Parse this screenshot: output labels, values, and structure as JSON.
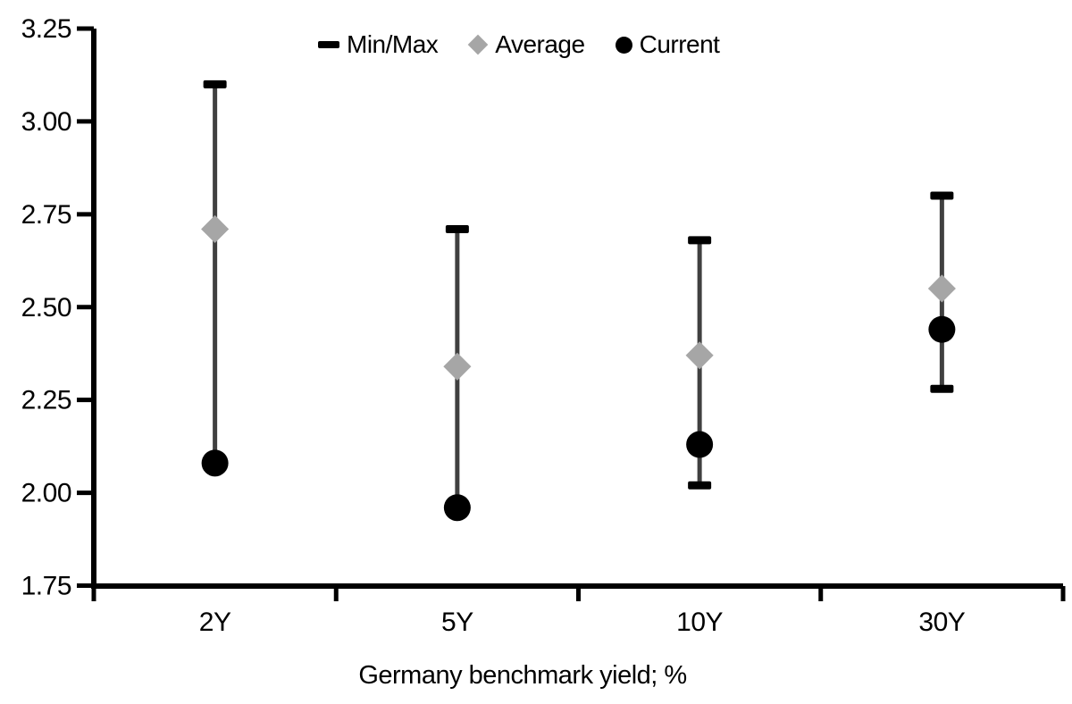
{
  "chart_data": {
    "type": "scatter",
    "title": "",
    "xlabel": "Germany benchmark yield; %",
    "ylabel": "",
    "ylim": [
      1.75,
      3.25
    ],
    "ytick_step": 0.25,
    "yticks": [
      {
        "value": 3.25,
        "label": "3.25"
      },
      {
        "value": 3.0,
        "label": "3.00"
      },
      {
        "value": 2.75,
        "label": "2.75"
      },
      {
        "value": 2.5,
        "label": "2.50"
      },
      {
        "value": 2.25,
        "label": "2.25"
      },
      {
        "value": 2.0,
        "label": "2.00"
      },
      {
        "value": 1.75,
        "label": "1.75"
      }
    ],
    "categories": [
      "2Y",
      "5Y",
      "10Y",
      "30Y"
    ],
    "series": [
      {
        "name": "Min/Max",
        "type": "range",
        "min": [
          2.08,
          1.96,
          2.02,
          2.28
        ],
        "max": [
          3.1,
          2.71,
          2.68,
          2.8
        ]
      },
      {
        "name": "Average",
        "type": "diamond",
        "values": [
          2.71,
          2.34,
          2.37,
          2.55
        ]
      },
      {
        "name": "Current",
        "type": "circle",
        "values": [
          2.08,
          1.96,
          2.13,
          2.44
        ]
      }
    ],
    "legend": {
      "position": "top-center",
      "items": [
        {
          "label": "Min/Max",
          "marker": "dash-icon",
          "color": "#000000"
        },
        {
          "label": "Average",
          "marker": "diamond-icon",
          "color": "#a6a6a6"
        },
        {
          "label": "Current",
          "marker": "circle-icon",
          "color": "#000000"
        }
      ]
    },
    "colors": {
      "axis": "#000000",
      "range_line": "#404040",
      "cap": "#000000",
      "average": "#a6a6a6",
      "current": "#000000",
      "background": "#ffffff",
      "text": "#000000"
    },
    "grid": false
  }
}
